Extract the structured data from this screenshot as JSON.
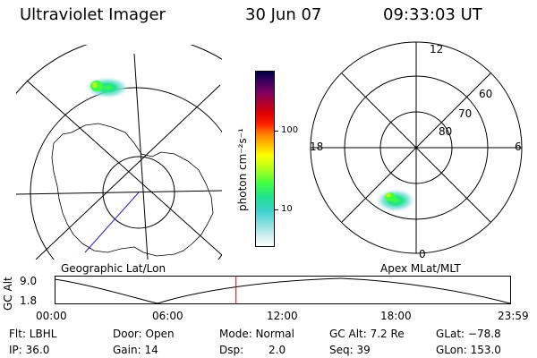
{
  "header": {
    "instrument": "Ultraviolet Imager",
    "date": "30 Jun 07",
    "time": "09:33:03 UT"
  },
  "colorbar": {
    "unit_label": "photon cm⁻²s⁻¹",
    "tick_100": "100",
    "tick_10": "10",
    "colors": [
      "#ffffff",
      "#cfeeee",
      "#8fe0e0",
      "#3fd0d0",
      "#20e090",
      "#40ff40",
      "#b0ff20",
      "#ffff00",
      "#ffc000",
      "#ff8000",
      "#ff2000",
      "#e00000",
      "#b00030",
      "#800060",
      "#400060",
      "#000040"
    ]
  },
  "geo_panel": {
    "label": "Geographic Lat/Lon"
  },
  "apex_panel": {
    "label": "Apex MLat/MLT",
    "mlt_12": "12",
    "mlt_18": "18",
    "mlt_6": "6",
    "mlt_0": "0",
    "lat_60": "60",
    "lat_70": "70",
    "lat_80": "80"
  },
  "timeline": {
    "ylabel": "GC Alt",
    "ymax": "9.0",
    "ymin": "1.8",
    "ticks": [
      "00:00",
      "06:00",
      "12:00",
      "18:00",
      "23:59"
    ],
    "marker_fraction": 0.3975
  },
  "info": {
    "flt": "Flt: LBHL",
    "ip": "IP: 36.0",
    "door": "Door: Open",
    "gain": "Gain: 14",
    "mode": "Mode: Normal",
    "dsp_label": "Dsp:",
    "dsp_value": "2.0",
    "gcalt": "GC Alt: 7.2 Re",
    "seq": "Seq: 39",
    "glat": "GLat: −78.8",
    "glon": "GLon: 153.0"
  }
}
